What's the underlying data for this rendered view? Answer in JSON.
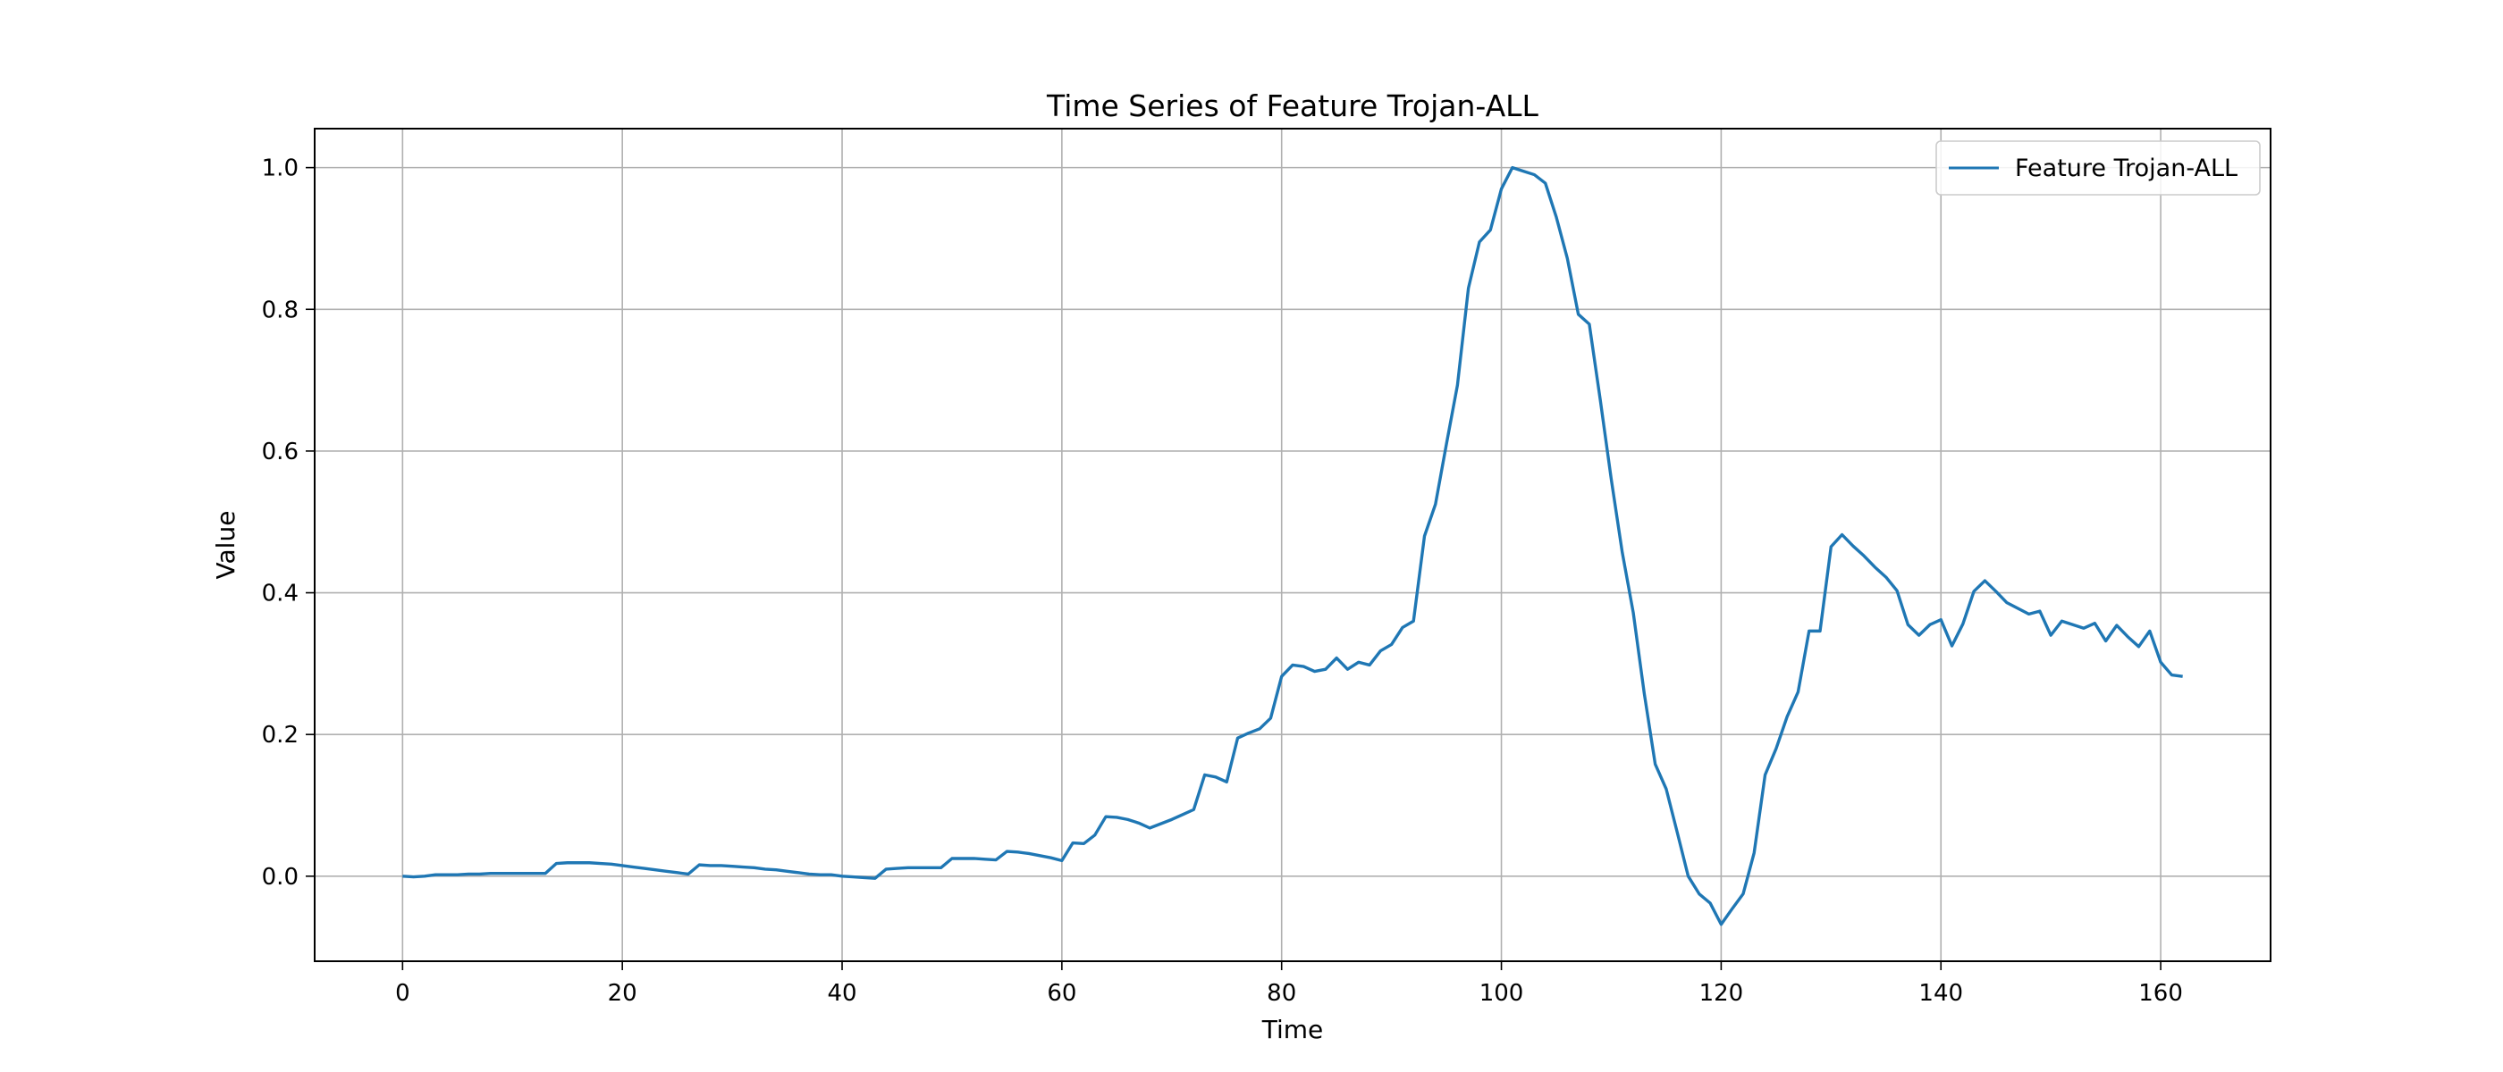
{
  "chart_data": {
    "type": "line",
    "title": "Time Series of Feature Trojan-ALL",
    "xlabel": "Time",
    "ylabel": "Value",
    "xlim": [
      -8,
      170
    ],
    "ylim": [
      -0.12,
      1.055
    ],
    "xticks": [
      0,
      20,
      40,
      60,
      80,
      100,
      120,
      140,
      160
    ],
    "yticks": [
      0.0,
      0.2,
      0.4,
      0.6,
      0.8,
      1.0
    ],
    "xtick_labels": [
      "0",
      "20",
      "40",
      "60",
      "80",
      "100",
      "120",
      "140",
      "160"
    ],
    "ytick_labels": [
      "0.0",
      "0.2",
      "0.4",
      "0.6",
      "0.8",
      "1.0"
    ],
    "grid": true,
    "legend": {
      "position": "top-right"
    },
    "series": [
      {
        "name": "Feature Trojan-ALL",
        "color": "#1f77b4",
        "values": [
          0.0,
          -0.001,
          0.0,
          0.002,
          0.002,
          0.002,
          0.003,
          0.003,
          0.004,
          0.004,
          0.004,
          0.004,
          0.004,
          0.004,
          0.018,
          0.019,
          0.019,
          0.019,
          0.018,
          0.017,
          0.015,
          0.013,
          0.011,
          0.009,
          0.007,
          0.005,
          0.003,
          0.016,
          0.015,
          0.015,
          0.014,
          0.013,
          0.012,
          0.01,
          0.009,
          0.007,
          0.005,
          0.003,
          0.002,
          0.002,
          0.0,
          -0.001,
          -0.002,
          -0.003,
          0.01,
          0.011,
          0.012,
          0.012,
          0.012,
          0.012,
          0.025,
          0.025,
          0.025,
          0.024,
          0.023,
          0.035,
          0.034,
          0.032,
          0.029,
          0.026,
          0.022,
          0.047,
          0.046,
          0.058,
          0.084,
          0.083,
          0.08,
          0.075,
          0.068,
          0.074,
          0.08,
          0.087,
          0.094,
          0.143,
          0.14,
          0.133,
          0.195,
          0.202,
          0.208,
          0.223,
          0.282,
          0.298,
          0.296,
          0.289,
          0.292,
          0.308,
          0.292,
          0.302,
          0.298,
          0.318,
          0.327,
          0.351,
          0.36,
          0.48,
          0.525,
          0.61,
          0.693,
          0.83,
          0.895,
          0.912,
          0.97,
          1.0,
          0.995,
          0.99,
          0.978,
          0.93,
          0.872,
          0.793,
          0.779,
          0.672,
          0.56,
          0.457,
          0.372,
          0.258,
          0.158,
          0.123,
          0.062,
          0.0,
          -0.025,
          -0.038,
          -0.068,
          -0.046,
          -0.025,
          0.033,
          0.143,
          0.18,
          0.225,
          0.26,
          0.346,
          0.346,
          0.465,
          0.482,
          0.466,
          0.452,
          0.436,
          0.422,
          0.403,
          0.355,
          0.34,
          0.355,
          0.362,
          0.325,
          0.356,
          0.402,
          0.417,
          0.402,
          0.386,
          0.378,
          0.37,
          0.374,
          0.34,
          0.36,
          0.355,
          0.35,
          0.357,
          0.332,
          0.354,
          0.338,
          0.324,
          0.346,
          0.302,
          0.284,
          0.282
        ]
      }
    ]
  }
}
